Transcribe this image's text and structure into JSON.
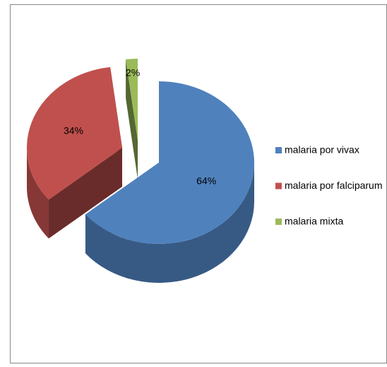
{
  "chart_data": {
    "type": "pie",
    "categories": [
      "malaria por vivax",
      "malaria por falciparum",
      "malaria mixta"
    ],
    "values": [
      64,
      34,
      2
    ],
    "value_labels": [
      "64%",
      "34%",
      "2%"
    ],
    "colors": [
      "#4f81bd",
      "#c0504d",
      "#9bbb59"
    ],
    "legend": "right"
  }
}
